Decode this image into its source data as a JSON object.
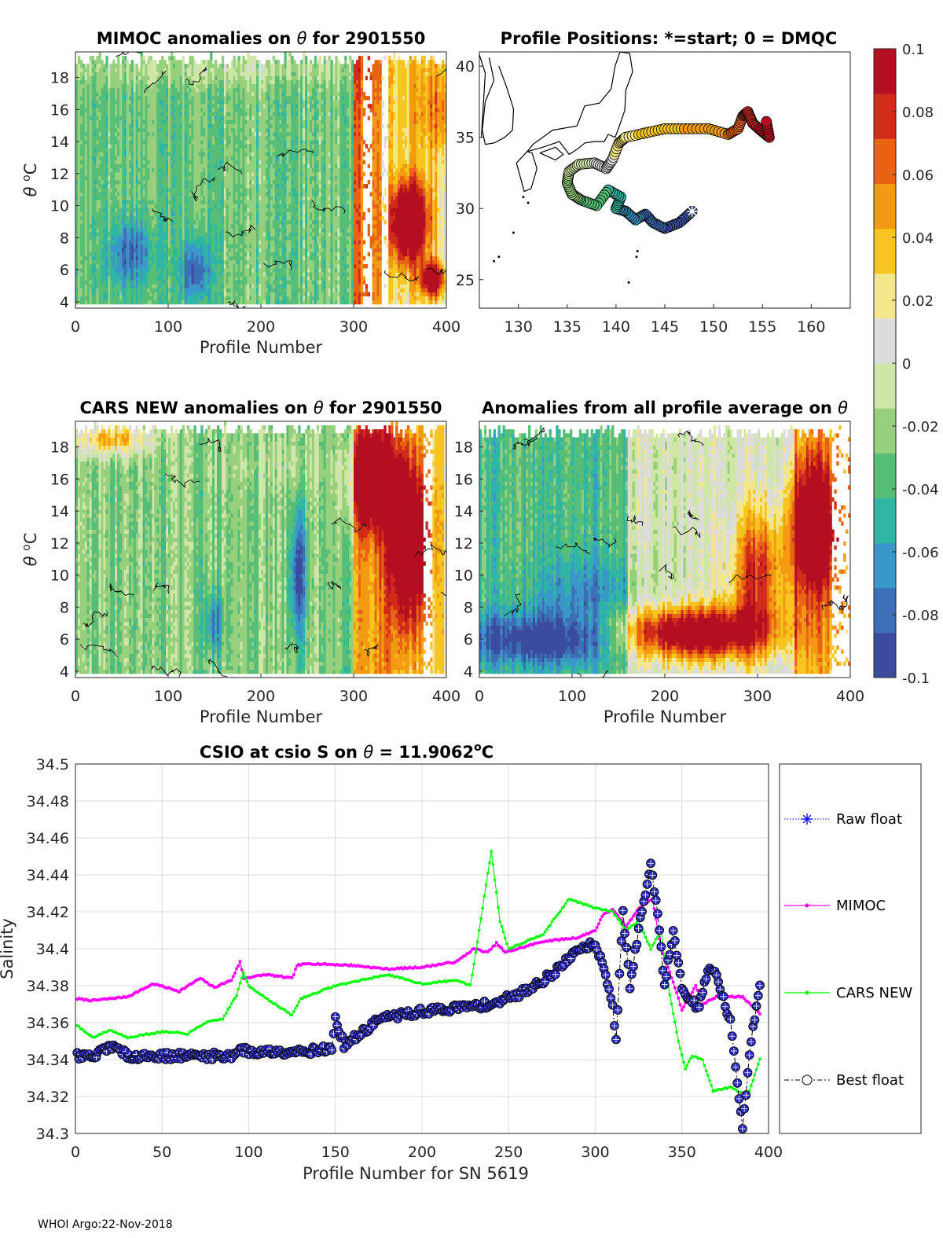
{
  "footer": {
    "credit": "WHOI Argo:22-Nov-2018"
  },
  "colors": {
    "raw": "#0000ff",
    "mimoc": "#ff00ff",
    "cars": "#00ff00",
    "best": "#000000",
    "best_fill": "#2a2ab5",
    "grid": "#dcdcdc",
    "axis": "#262626",
    "coast": "#000000",
    "colormap": [
      "#3b4c9c",
      "#3d6fb6",
      "#3a98c8",
      "#2fb6a4",
      "#57be78",
      "#96d07c",
      "#cfe6a6",
      "#dcdcdc",
      "#f4e68a",
      "#f7c51e",
      "#f39a13",
      "#e96412",
      "#d12b1a",
      "#b40f20"
    ]
  },
  "chart_data": [
    {
      "id": "mimoc",
      "type": "heatmap",
      "title_pre": "MIMOC anomalies on ",
      "title_sym": "θ",
      "title_post": "  for 2901550",
      "xlabel": "Profile Number",
      "ylabel_sym": "θ",
      "ylabel_unit_sup": "o",
      "ylabel_unit": "C",
      "xlim": [
        0,
        400
      ],
      "ylim": [
        3.6,
        19.6
      ],
      "xticks": [
        0,
        100,
        200,
        300,
        400
      ],
      "yticks": [
        4,
        6,
        8,
        10,
        12,
        14,
        16,
        18
      ],
      "seed": 17,
      "x_columns": 160,
      "y_rows": 64,
      "pattern": {
        "bands": [
          [
            0,
            300,
            -0.03
          ],
          [
            300,
            330,
            0.06
          ],
          [
            330,
            400,
            0.02
          ]
        ],
        "blobs": [
          [
            360,
            9,
            20,
            2.5,
            0.14
          ],
          [
            385,
            5.4,
            12,
            1,
            0.12
          ],
          [
            60,
            7,
            25,
            2,
            -0.05
          ],
          [
            130,
            6,
            15,
            2,
            -0.06
          ],
          [
            420,
            16,
            60,
            3,
            0.05
          ],
          [
            150,
            18.5,
            200,
            1,
            0.02
          ]
        ],
        "top_cut": 19.5,
        "gaps": [
          [
            310,
            320
          ],
          [
            330,
            338
          ]
        ]
      }
    },
    {
      "id": "map",
      "type": "scatter",
      "title": "Profile Positions: *=start; 0 = DMQC",
      "xlim": [
        126,
        164
      ],
      "ylim": [
        23,
        41
      ],
      "xticks": [
        130,
        135,
        140,
        145,
        150,
        155,
        160
      ],
      "yticks": [
        25,
        30,
        35,
        40
      ],
      "track_waypoints": [
        [
          147.8,
          29.8
        ],
        [
          146.5,
          29.0
        ],
        [
          145.0,
          28.6
        ],
        [
          143.8,
          29.0
        ],
        [
          143.0,
          29.6
        ],
        [
          142.0,
          29.2
        ],
        [
          141.0,
          29.8
        ],
        [
          140.0,
          30.0
        ],
        [
          140.5,
          30.8
        ],
        [
          139.2,
          31.3
        ],
        [
          138.0,
          30.2
        ],
        [
          136.4,
          30.6
        ],
        [
          135.5,
          31.0
        ],
        [
          135.0,
          31.8
        ],
        [
          135.2,
          32.6
        ],
        [
          136.2,
          33.1
        ],
        [
          137.8,
          33.2
        ],
        [
          139.0,
          32.8
        ],
        [
          139.6,
          33.4
        ],
        [
          140.3,
          34.6
        ],
        [
          141.0,
          35.0
        ],
        [
          143.0,
          35.3
        ],
        [
          145.0,
          35.6
        ],
        [
          147.0,
          35.6
        ],
        [
          149.5,
          35.6
        ],
        [
          151.5,
          35.2
        ],
        [
          152.5,
          35.6
        ],
        [
          153.0,
          36.5
        ],
        [
          153.5,
          36.8
        ],
        [
          154.0,
          36.0
        ],
        [
          154.8,
          35.5
        ],
        [
          155.7,
          35.0
        ],
        [
          155.4,
          36.1
        ]
      ],
      "start": [
        147.8,
        29.8
      ]
    },
    {
      "id": "cars",
      "type": "heatmap",
      "title_pre": "CARS NEW anomalies on ",
      "title_sym": "θ",
      "title_post": " for 2901550",
      "xlabel": "Profile Number",
      "ylabel_sym": "θ",
      "ylabel_unit_sup": "o",
      "ylabel_unit": "C",
      "xlim": [
        0,
        400
      ],
      "ylim": [
        3.6,
        19.6
      ],
      "xticks": [
        0,
        100,
        200,
        300,
        400
      ],
      "yticks": [
        4,
        6,
        8,
        10,
        12,
        14,
        16,
        18
      ],
      "seed": 29,
      "x_columns": 160,
      "y_rows": 64,
      "pattern": {
        "bands": [
          [
            0,
            300,
            -0.025
          ],
          [
            300,
            340,
            0.05
          ],
          [
            340,
            400,
            0.03
          ]
        ],
        "blobs": [
          [
            360,
            12,
            20,
            5,
            0.12
          ],
          [
            320,
            16,
            25,
            3,
            0.1
          ],
          [
            240,
            10,
            8,
            4,
            -0.07
          ],
          [
            150,
            7,
            10,
            2,
            -0.05
          ],
          [
            40,
            18.5,
            40,
            1,
            0.07
          ],
          [
            220,
            17,
            60,
            1.5,
            0.01
          ]
        ],
        "top_cut": 19.5,
        "gaps": [
          [
            375,
            385
          ]
        ]
      }
    },
    {
      "id": "avg",
      "type": "heatmap",
      "title_pre": "Anomalies from all profile average on ",
      "title_sym": "θ",
      "title_post": "",
      "xlabel": "Profile Number",
      "xlim": [
        0,
        400
      ],
      "ylim": [
        3.6,
        19.6
      ],
      "xticks": [
        0,
        100,
        200,
        300,
        400
      ],
      "yticks": [
        4,
        6,
        8,
        10,
        12,
        14,
        16,
        18
      ],
      "seed": 41,
      "x_columns": 160,
      "y_rows": 64,
      "pattern": {
        "bands": [
          [
            0,
            160,
            -0.04
          ],
          [
            160,
            340,
            0.0
          ],
          [
            340,
            400,
            0.04
          ]
        ],
        "blobs": [
          [
            70,
            6,
            90,
            1.6,
            -0.07
          ],
          [
            230,
            6.4,
            80,
            1.6,
            0.13
          ],
          [
            300,
            10,
            30,
            4,
            0.08
          ],
          [
            360,
            13,
            25,
            4,
            0.11
          ],
          [
            240,
            15,
            120,
            3.5,
            0.0
          ],
          [
            120,
            9,
            60,
            2,
            -0.03
          ]
        ],
        "top_cut": 19.3,
        "gaps": [
          [
            380,
            400
          ]
        ]
      }
    },
    {
      "id": "salinity",
      "type": "line",
      "title_pre": "CSIO at csio S on ",
      "title_sym": "θ",
      "title_post": " = 11.9062",
      "title_sup": "o",
      "title_end": "C",
      "xlabel": "Profile Number for SN 5619",
      "ylabel": "Salinity",
      "xlim": [
        0,
        400
      ],
      "ylim": [
        34.3,
        34.5
      ],
      "xticks": [
        0,
        50,
        100,
        150,
        200,
        250,
        300,
        350,
        400
      ],
      "yticks": [
        34.3,
        34.32,
        34.34,
        34.36,
        34.38,
        34.4,
        34.42,
        34.44,
        34.46,
        34.48,
        34.5
      ],
      "series": [
        {
          "name": "Raw float",
          "style": "raw"
        },
        {
          "name": "MIMOC",
          "style": "mimoc"
        },
        {
          "name": "CARS NEW",
          "style": "cars"
        },
        {
          "name": "Best float",
          "style": "best"
        }
      ],
      "mimoc_knots": [
        [
          0,
          34.373
        ],
        [
          10,
          34.372
        ],
        [
          30,
          34.374
        ],
        [
          45,
          34.381
        ],
        [
          60,
          34.377
        ],
        [
          72,
          34.384
        ],
        [
          80,
          34.379
        ],
        [
          90,
          34.383
        ],
        [
          95,
          34.393
        ],
        [
          97,
          34.384
        ],
        [
          110,
          34.386
        ],
        [
          125,
          34.384
        ],
        [
          128,
          34.391
        ],
        [
          135,
          34.392
        ],
        [
          160,
          34.391
        ],
        [
          180,
          34.389
        ],
        [
          200,
          34.39
        ],
        [
          220,
          34.393
        ],
        [
          230,
          34.4
        ],
        [
          238,
          34.398
        ],
        [
          243,
          34.403
        ],
        [
          248,
          34.398
        ],
        [
          270,
          34.404
        ],
        [
          290,
          34.406
        ],
        [
          300,
          34.41
        ],
        [
          305,
          34.419
        ],
        [
          310,
          34.421
        ],
        [
          318,
          34.412
        ],
        [
          325,
          34.422
        ],
        [
          333,
          34.427
        ],
        [
          338,
          34.4
        ],
        [
          345,
          34.382
        ],
        [
          350,
          34.367
        ],
        [
          358,
          34.38
        ],
        [
          362,
          34.37
        ],
        [
          370,
          34.374
        ],
        [
          385,
          34.374
        ],
        [
          395,
          34.365
        ]
      ],
      "cars_knots": [
        [
          0,
          34.359
        ],
        [
          10,
          34.352
        ],
        [
          20,
          34.356
        ],
        [
          30,
          34.352
        ],
        [
          50,
          34.355
        ],
        [
          65,
          34.354
        ],
        [
          75,
          34.36
        ],
        [
          85,
          34.362
        ],
        [
          93,
          34.375
        ],
        [
          97,
          34.387
        ],
        [
          100,
          34.38
        ],
        [
          115,
          34.37
        ],
        [
          125,
          34.364
        ],
        [
          130,
          34.373
        ],
        [
          150,
          34.38
        ],
        [
          180,
          34.386
        ],
        [
          200,
          34.381
        ],
        [
          220,
          34.383
        ],
        [
          228,
          34.38
        ],
        [
          233,
          34.41
        ],
        [
          240,
          34.453
        ],
        [
          245,
          34.415
        ],
        [
          250,
          34.4
        ],
        [
          270,
          34.408
        ],
        [
          285,
          34.427
        ],
        [
          300,
          34.422
        ],
        [
          310,
          34.42
        ],
        [
          318,
          34.41
        ],
        [
          325,
          34.415
        ],
        [
          332,
          34.4
        ],
        [
          338,
          34.41
        ],
        [
          342,
          34.38
        ],
        [
          348,
          34.35
        ],
        [
          352,
          34.335
        ],
        [
          356,
          34.342
        ],
        [
          362,
          34.34
        ],
        [
          368,
          34.323
        ],
        [
          378,
          34.325
        ],
        [
          388,
          34.32
        ],
        [
          395,
          34.34
        ]
      ],
      "best_knots": [
        [
          0,
          34.342
        ],
        [
          10,
          34.341
        ],
        [
          20,
          34.348
        ],
        [
          25,
          34.345
        ],
        [
          30,
          34.342
        ],
        [
          60,
          34.342
        ],
        [
          90,
          34.342
        ],
        [
          95,
          34.346
        ],
        [
          100,
          34.344
        ],
        [
          140,
          34.345
        ],
        [
          148,
          34.346
        ],
        [
          150,
          34.362
        ],
        [
          155,
          34.348
        ],
        [
          165,
          34.354
        ],
        [
          175,
          34.362
        ],
        [
          200,
          34.366
        ],
        [
          220,
          34.368
        ],
        [
          240,
          34.37
        ],
        [
          255,
          34.375
        ],
        [
          270,
          34.383
        ],
        [
          280,
          34.39
        ],
        [
          290,
          34.4
        ],
        [
          300,
          34.403
        ],
        [
          305,
          34.39
        ],
        [
          310,
          34.37
        ],
        [
          312,
          34.35
        ],
        [
          316,
          34.42
        ],
        [
          320,
          34.38
        ],
        [
          325,
          34.41
        ],
        [
          332,
          34.445
        ],
        [
          336,
          34.42
        ],
        [
          340,
          34.38
        ],
        [
          345,
          34.41
        ],
        [
          350,
          34.38
        ],
        [
          355,
          34.372
        ],
        [
          360,
          34.368
        ],
        [
          365,
          34.39
        ],
        [
          370,
          34.385
        ],
        [
          378,
          34.36
        ],
        [
          385,
          34.303
        ],
        [
          390,
          34.35
        ],
        [
          395,
          34.381
        ]
      ]
    }
  ],
  "colorbar": {
    "range": [
      -0.1,
      0.1
    ],
    "ticks": [
      "0.1",
      "0.08",
      "0.06",
      "0.04",
      "0.02",
      "0",
      "-0.02",
      "-0.04",
      "-0.06",
      "-0.08",
      "-0.1"
    ]
  }
}
